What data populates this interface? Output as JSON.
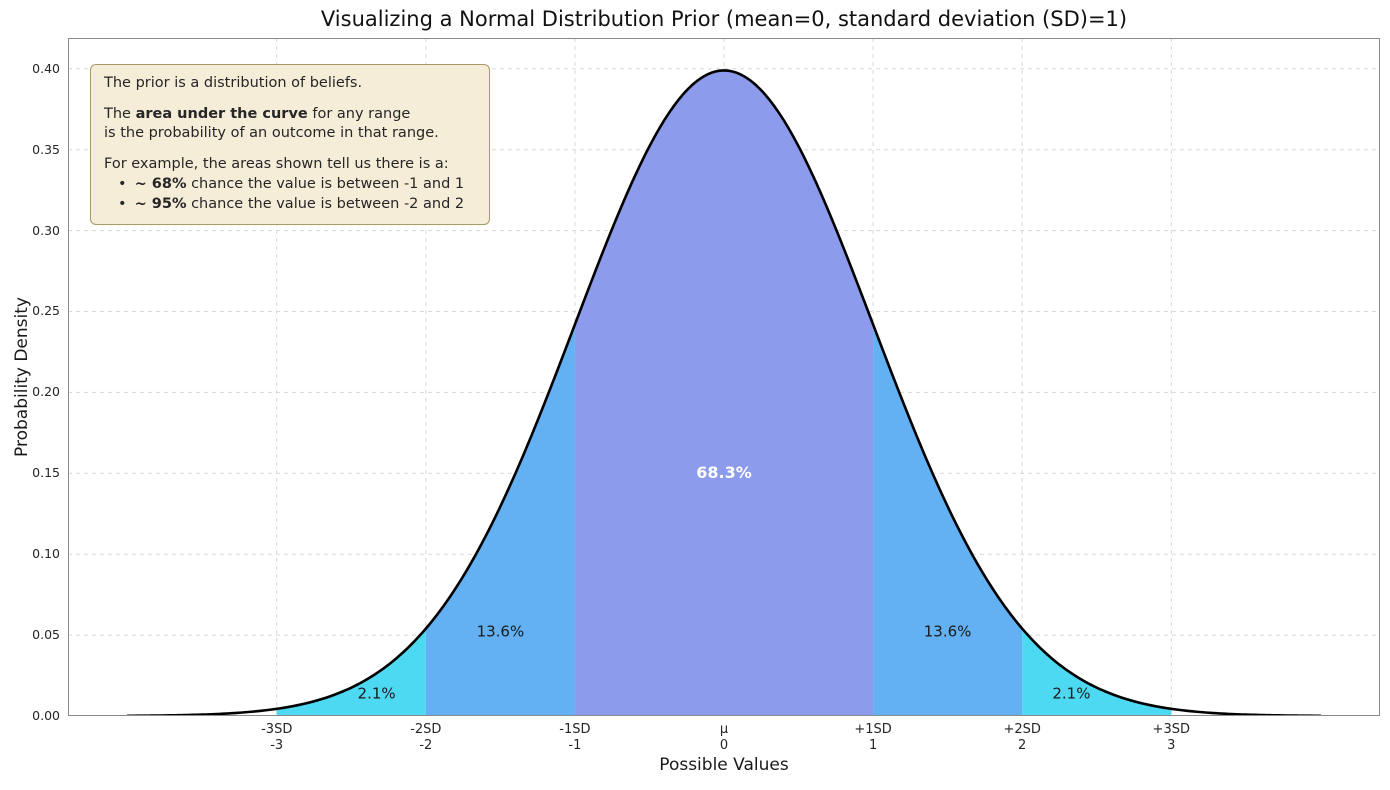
{
  "chart_data": {
    "type": "area",
    "title": "Visualizing a Normal Distribution Prior (mean=0, standard deviation (SD)=1)",
    "xlabel": "Possible Values",
    "ylabel": "Probability Density",
    "distribution": {
      "name": "normal",
      "mean": 0,
      "sd": 1,
      "peak_density": 0.3989
    },
    "xlim": [
      -4.4,
      4.4
    ],
    "ylim": [
      0,
      0.419
    ],
    "curve_range": [
      -4,
      4
    ],
    "curve_color": "#000000",
    "grid": true,
    "legend": "none",
    "y_ticks": [
      0.0,
      0.05,
      0.1,
      0.15,
      0.2,
      0.25,
      0.3,
      0.35,
      0.4
    ],
    "x_ticks": [
      {
        "line1": "-3SD",
        "line2": "-3",
        "value": -3
      },
      {
        "line1": "-2SD",
        "line2": "-2",
        "value": -2
      },
      {
        "line1": "-1SD",
        "line2": "-1",
        "value": -1
      },
      {
        "line1": "μ",
        "line2": "0",
        "value": 0
      },
      {
        "line1": "+1SD",
        "line2": "1",
        "value": 1
      },
      {
        "line1": "+2SD",
        "line2": "2",
        "value": 2
      },
      {
        "line1": "+3SD",
        "line2": "3",
        "value": 3
      }
    ],
    "regions": [
      {
        "from": -3,
        "to": -2,
        "percent": "2.1%",
        "value": 2.1,
        "color": "#4ed9f2",
        "label_x": -2.33,
        "label_y": 0.0135,
        "label_color": "#1a1a1a",
        "bold": false
      },
      {
        "from": -2,
        "to": -1,
        "percent": "13.6%",
        "value": 13.6,
        "color": "#63b1f2",
        "label_x": -1.5,
        "label_y": 0.052,
        "label_color": "#1a1a1a",
        "bold": false
      },
      {
        "from": -1,
        "to": 1,
        "percent": "68.3%",
        "value": 68.3,
        "color": "#8c9bec",
        "label_x": 0.0,
        "label_y": 0.15,
        "label_color": "#ffffff",
        "bold": true
      },
      {
        "from": 1,
        "to": 2,
        "percent": "13.6%",
        "value": 13.6,
        "color": "#63b1f2",
        "label_x": 1.5,
        "label_y": 0.052,
        "label_color": "#1a1a1a",
        "bold": false
      },
      {
        "from": 2,
        "to": 3,
        "percent": "2.1%",
        "value": 2.1,
        "color": "#4ed9f2",
        "label_x": 2.33,
        "label_y": 0.0135,
        "label_color": "#1a1a1a",
        "bold": false
      }
    ]
  },
  "annotation": {
    "bg_color": "#f6edd9",
    "border_color": "#a89968",
    "lines": [
      {
        "parts": [
          {
            "text": "The prior is a distribution of beliefs."
          }
        ]
      },
      {
        "blank": true
      },
      {
        "parts": [
          {
            "text": "The "
          },
          {
            "text": "area under the curve",
            "bold": true
          },
          {
            "text": " for any range"
          }
        ]
      },
      {
        "parts": [
          {
            "text": "is the probability of an outcome in that range."
          }
        ]
      },
      {
        "blank": true
      },
      {
        "parts": [
          {
            "text": "For example, the areas shown tell us there is a:"
          }
        ]
      },
      {
        "bullet": true,
        "parts": [
          {
            "text": "~ 68%",
            "bold": true
          },
          {
            "text": " chance the value is between -1 and 1"
          }
        ]
      },
      {
        "bullet": true,
        "parts": [
          {
            "text": "~ 95%",
            "bold": true
          },
          {
            "text": " chance the value is between -2 and 2"
          }
        ]
      }
    ]
  }
}
